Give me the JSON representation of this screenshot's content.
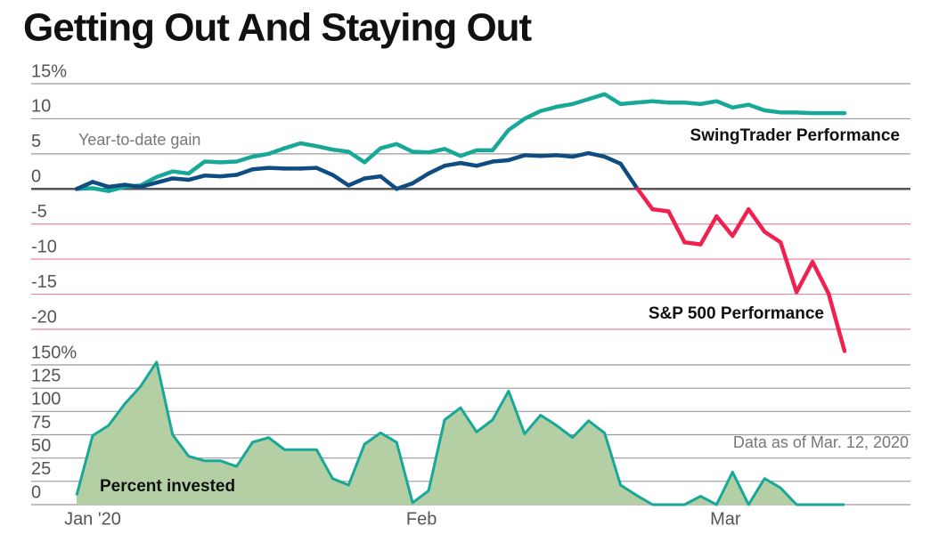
{
  "chart_data": [
    {
      "type": "line",
      "title": "Getting Out And Staying Out",
      "y_label": "Year-to-date gain",
      "ylim": [
        -20,
        15
      ],
      "yticks": [
        {
          "value": 15,
          "label": "15%"
        },
        10,
        5,
        0,
        -5,
        -10,
        -15,
        -20
      ],
      "grid": true,
      "series": [
        {
          "name": "SwingTrader Performance",
          "color": "#17a897",
          "values": [
            0,
            0.1,
            -0.3,
            0.3,
            0.5,
            1.7,
            2.5,
            2.2,
            3.9,
            3.8,
            3.9,
            4.6,
            5.0,
            5.8,
            6.5,
            6.1,
            5.6,
            5.3,
            3.8,
            5.8,
            6.4,
            5.3,
            5.2,
            5.7,
            4.7,
            5.5,
            5.5,
            8.4,
            10.0,
            11.1,
            11.7,
            12.1,
            12.8,
            13.5,
            12.1,
            12.3,
            12.5,
            12.3,
            12.3,
            12.1,
            12.5,
            11.6,
            12.0,
            11.2,
            10.9,
            10.9,
            10.8,
            10.8,
            10.8
          ]
        },
        {
          "name": "S&P 500 Performance",
          "color": "#0f4c81",
          "negative_color": "#f0204f",
          "values": [
            0,
            1.0,
            0.3,
            0.6,
            0.3,
            0.9,
            1.5,
            1.3,
            1.9,
            1.8,
            2.0,
            2.8,
            3.0,
            2.9,
            2.9,
            3.0,
            2.0,
            0.5,
            1.5,
            1.8,
            0.0,
            0.8,
            2.2,
            3.3,
            3.7,
            3.3,
            3.9,
            4.1,
            4.8,
            4.7,
            4.8,
            4.6,
            5.1,
            4.6,
            3.6,
            0.2,
            -2.9,
            -3.2,
            -7.6,
            -7.9,
            -3.9,
            -6.7,
            -2.9,
            -6.1,
            -7.6,
            -14.7,
            -10.4,
            -14.9,
            -23.1
          ]
        }
      ]
    },
    {
      "type": "area",
      "annotation": "Data as of Mar. 12, 2020",
      "categories": [
        "Jan '20",
        null,
        null,
        null,
        null,
        null,
        null,
        null,
        null,
        null,
        null,
        null,
        null,
        null,
        null,
        null,
        null,
        null,
        null,
        null,
        null,
        "Feb",
        null,
        null,
        null,
        null,
        null,
        null,
        null,
        null,
        null,
        null,
        null,
        null,
        null,
        null,
        null,
        null,
        null,
        null,
        "Mar",
        null,
        null,
        null,
        null,
        null,
        null,
        null,
        null
      ],
      "ylim": [
        0,
        150
      ],
      "yticks": [
        {
          "value": 150,
          "label": "150%"
        },
        125,
        100,
        75,
        50,
        25,
        0
      ],
      "grid": true,
      "series": [
        {
          "name": "Percent invested",
          "color": "#17a897",
          "fill": "#b3cfa3",
          "values": [
            10,
            74,
            85,
            108,
            127,
            153,
            75,
            52,
            47,
            47,
            41,
            67,
            72,
            59,
            59,
            59,
            28,
            21,
            65,
            77,
            67,
            2,
            15,
            91,
            104,
            78,
            91,
            122,
            76,
            96,
            85,
            72,
            90,
            77,
            21,
            10,
            0,
            0,
            0,
            9,
            0,
            35,
            0,
            28,
            18,
            0,
            0,
            0,
            0
          ]
        }
      ]
    }
  ]
}
